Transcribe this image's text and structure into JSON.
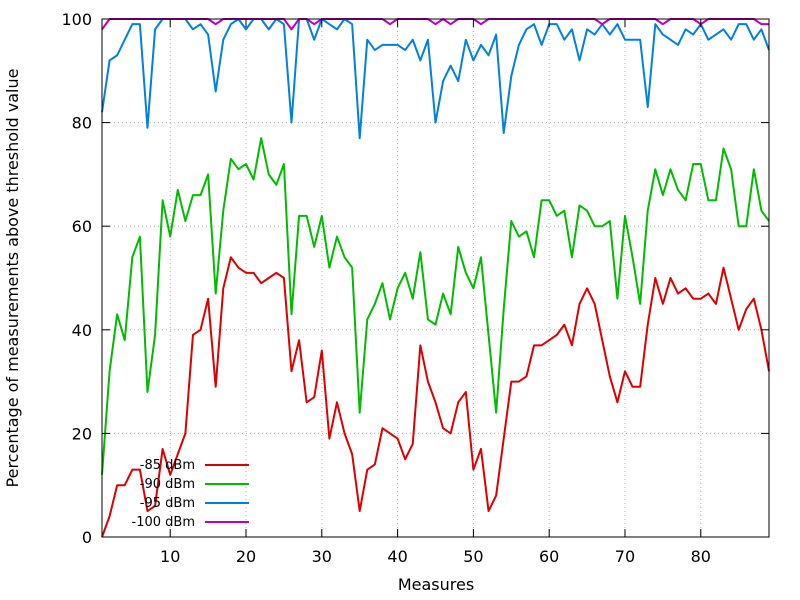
{
  "chart_data": {
    "type": "line",
    "title": "",
    "xlabel": "Measures",
    "ylabel": "Percentage of measurements above threshold value",
    "xlim": [
      1,
      89
    ],
    "ylim": [
      0,
      100
    ],
    "xticks": [
      10,
      20,
      30,
      40,
      50,
      60,
      70,
      80
    ],
    "yticks": [
      0,
      20,
      40,
      60,
      80,
      100
    ],
    "grid": true,
    "legend_position": "bottom-left",
    "series": [
      {
        "name": "-85 dBm",
        "color": "#dd0000",
        "values": [
          0,
          4,
          10,
          10,
          13,
          13,
          5,
          6,
          17,
          12,
          16,
          20,
          39,
          40,
          46,
          29,
          48,
          54,
          52,
          51,
          51,
          49,
          50,
          51,
          50,
          32,
          38,
          26,
          27,
          36,
          19,
          26,
          20,
          16,
          5,
          13,
          14,
          21,
          20,
          19,
          15,
          18,
          37,
          30,
          26,
          21,
          20,
          26,
          28,
          13,
          17,
          5,
          8,
          19,
          30,
          30,
          31,
          37,
          37,
          38,
          39,
          41,
          37,
          45,
          48,
          45,
          38,
          31,
          26,
          32,
          29,
          29,
          41,
          50,
          45,
          50,
          47,
          48,
          46,
          46,
          47,
          45,
          52,
          46,
          40,
          44,
          46,
          40,
          32
        ]
      },
      {
        "name": "-90 dBm",
        "color": "#00bb00",
        "values": [
          12,
          32,
          43,
          38,
          54,
          58,
          28,
          39,
          65,
          58,
          67,
          61,
          66,
          66,
          70,
          47,
          63,
          73,
          71,
          72,
          69,
          77,
          70,
          68,
          72,
          43,
          62,
          62,
          56,
          62,
          52,
          58,
          54,
          52,
          24,
          42,
          45,
          49,
          42,
          48,
          51,
          46,
          55,
          42,
          41,
          47,
          43,
          56,
          51,
          48,
          54,
          39,
          24,
          44,
          61,
          58,
          59,
          54,
          65,
          65,
          62,
          63,
          54,
          64,
          63,
          60,
          60,
          61,
          46,
          62,
          54,
          45,
          63,
          71,
          66,
          71,
          67,
          65,
          72,
          72,
          65,
          65,
          75,
          71,
          60,
          60,
          71,
          63,
          61
        ]
      },
      {
        "name": "-95 dBm",
        "color": "#0080e0",
        "values": [
          82,
          92,
          93,
          96,
          99,
          99,
          79,
          98,
          100,
          100,
          100,
          100,
          98,
          99,
          97,
          86,
          96,
          99,
          100,
          98,
          100,
          100,
          98,
          100,
          99,
          80,
          100,
          100,
          96,
          100,
          99,
          98,
          100,
          99,
          77,
          96,
          94,
          95,
          95,
          95,
          94,
          96,
          92,
          96,
          80,
          88,
          91,
          88,
          96,
          92,
          95,
          93,
          97,
          78,
          89,
          95,
          98,
          99,
          95,
          99,
          99,
          96,
          98,
          92,
          98,
          97,
          99,
          97,
          99,
          96,
          96,
          96,
          83,
          99,
          97,
          96,
          95,
          98,
          97,
          99,
          96,
          97,
          98,
          96,
          99,
          99,
          96,
          98,
          94
        ]
      },
      {
        "name": "-100 dBm",
        "color": "#c000c0",
        "values": [
          98,
          100,
          100,
          100,
          100,
          100,
          100,
          100,
          100,
          100,
          100,
          100,
          100,
          100,
          100,
          99,
          100,
          100,
          100,
          100,
          100,
          100,
          100,
          100,
          100,
          98,
          100,
          100,
          99,
          100,
          100,
          100,
          100,
          100,
          100,
          100,
          100,
          100,
          99,
          100,
          100,
          100,
          100,
          100,
          99,
          100,
          99,
          100,
          100,
          100,
          99,
          100,
          100,
          100,
          100,
          100,
          100,
          100,
          100,
          100,
          100,
          100,
          100,
          100,
          100,
          100,
          99,
          100,
          100,
          100,
          100,
          100,
          100,
          100,
          99,
          100,
          100,
          100,
          100,
          99,
          100,
          100,
          100,
          100,
          100,
          100,
          100,
          99,
          99
        ]
      }
    ]
  }
}
